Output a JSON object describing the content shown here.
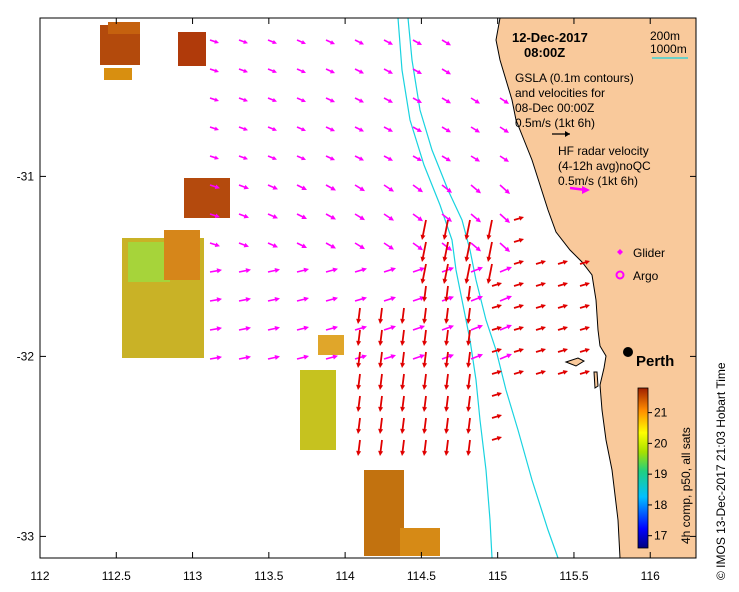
{
  "header": {
    "date": "12-Dec-2017",
    "time": "08:00Z"
  },
  "legend": {
    "contour_200": "200m",
    "contour_1000": "1000m",
    "gsla_line1": "GSLA (0.1m contours)",
    "gsla_line2": "and velocities for",
    "gsla_line3": "08-Dec 00:00Z",
    "gsla_scale": "0.5m/s (1kt 6h)",
    "hf_line1": "HF radar velocity",
    "hf_line2": "(4-12h avg)noQC",
    "hf_scale": "0.5m/s (1kt 6h)",
    "glider": "Glider",
    "argo": "Argo",
    "city": "Perth"
  },
  "axes": {
    "x_ticks": [
      "112",
      "112.5",
      "113",
      "113.5",
      "114",
      "114.5",
      "115",
      "115.5",
      "116"
    ],
    "y_ticks": [
      "-31",
      "-32",
      "-33"
    ]
  },
  "colorbar": {
    "label": "4h comp, p50, all sats",
    "ticks": [
      "21",
      "20",
      "19",
      "18",
      "17"
    ],
    "min": 16.6,
    "max": 21.8
  },
  "credit": "© IMOS 13-Dec-2017 21:03 Hobart Time",
  "colors": {
    "land": "#f9c99b",
    "gsla_arrow": "#ff00ff",
    "hf_arrow": "#e00000",
    "contour": "#19d3e0"
  }
}
